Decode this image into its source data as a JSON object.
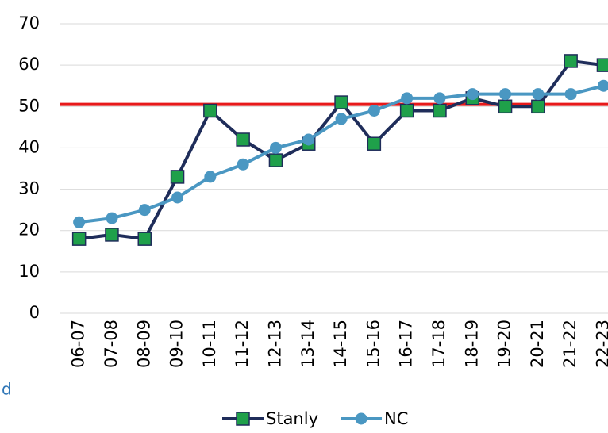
{
  "chart_data": {
    "type": "line",
    "categories": [
      "06-07",
      "07-08",
      "08-09",
      "09-10",
      "10-11",
      "11-12",
      "12-13",
      "13-14",
      "14-15",
      "15-16",
      "16-17",
      "17-18",
      "18-19",
      "19-20",
      "20-21",
      "21-22",
      "22-23"
    ],
    "series": [
      {
        "name": "Stanly",
        "color": "#1f2d5a",
        "marker": "square",
        "marker_color": "#1fa04a",
        "values": [
          18,
          19,
          18,
          33,
          49,
          42,
          37,
          41,
          51,
          41,
          49,
          49,
          52,
          50,
          50,
          61,
          60
        ]
      },
      {
        "name": "NC",
        "color": "#4a97c2",
        "marker": "circle",
        "marker_color": "#4a97c2",
        "values": [
          22,
          23,
          25,
          28,
          33,
          36,
          40,
          42,
          47,
          49,
          52,
          52,
          53,
          53,
          53,
          53,
          55
        ]
      }
    ],
    "reference_line": {
      "value": 50.5,
      "color": "#e8191a"
    },
    "ylim": [
      0,
      70
    ],
    "yticks": [
      0,
      10,
      20,
      30,
      40,
      50,
      60,
      70
    ],
    "grid": true,
    "legend": "bottom",
    "annotation": "d"
  }
}
